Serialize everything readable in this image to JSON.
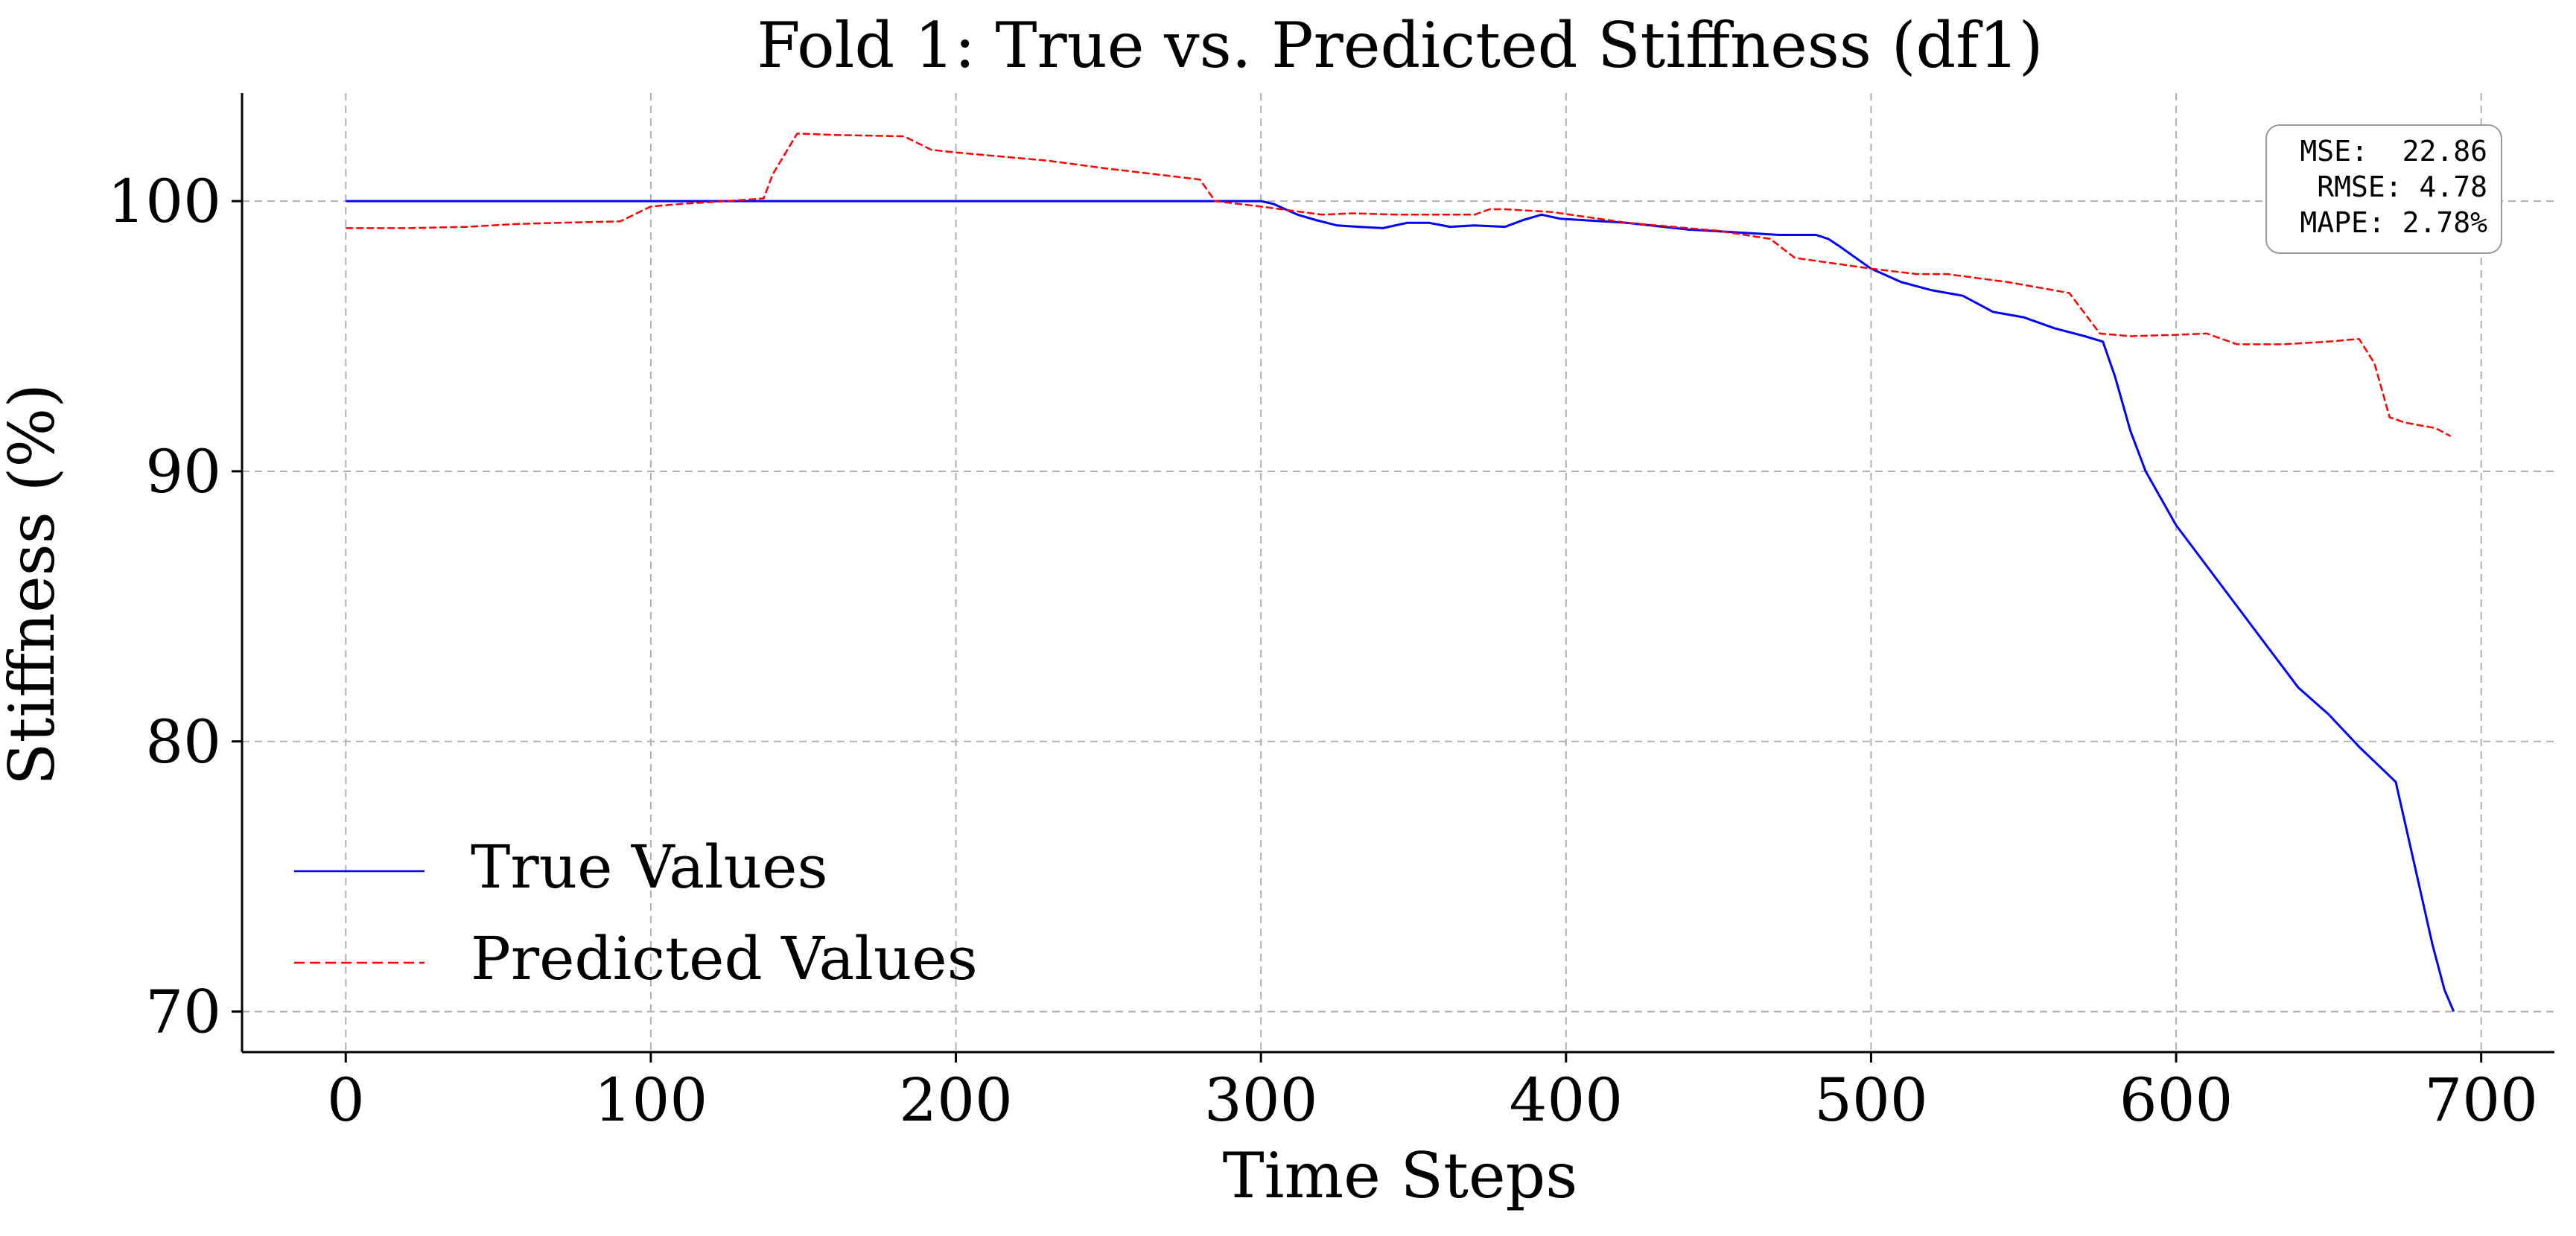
{
  "chart_data": {
    "type": "line",
    "title": "Fold 1: True vs. Predicted Stiffness (df1)",
    "xlabel": "Time Steps",
    "ylabel": "Stiffness (%)",
    "xlim": [
      -34,
      724
    ],
    "ylim": [
      68.5,
      104
    ],
    "xticks": [
      0,
      100,
      200,
      300,
      400,
      500,
      600,
      700
    ],
    "yticks": [
      70,
      80,
      90,
      100
    ],
    "grid": true,
    "legend_position": "lower-left",
    "metrics_box": {
      "mse": "MSE:  22.86",
      "rmse": " RMSE: 4.78",
      "mape": "MAPE: 2.78%"
    },
    "series": [
      {
        "name": "True Values",
        "color": "#0000ff",
        "linestyle": "solid",
        "x": [
          0,
          100,
          200,
          300,
          304,
          312,
          318,
          325,
          332,
          340,
          348,
          355,
          362,
          370,
          380,
          386,
          392,
          398,
          405,
          420,
          440,
          455,
          470,
          478,
          482,
          486,
          490,
          495,
          500,
          510,
          520,
          530,
          540,
          550,
          560,
          570,
          576,
          580,
          585,
          590,
          600,
          610,
          620,
          630,
          640,
          650,
          660,
          672,
          676,
          680,
          684,
          688,
          691
        ],
        "y": [
          100,
          100,
          100,
          100,
          99.9,
          99.5,
          99.3,
          99.1,
          99.05,
          99.0,
          99.2,
          99.2,
          99.05,
          99.1,
          99.05,
          99.3,
          99.5,
          99.35,
          99.3,
          99.2,
          98.95,
          98.85,
          98.75,
          98.75,
          98.75,
          98.6,
          98.3,
          97.9,
          97.5,
          97.0,
          96.7,
          96.5,
          95.9,
          95.7,
          95.3,
          95.0,
          94.8,
          93.5,
          91.5,
          90.0,
          88.0,
          86.5,
          85.0,
          83.5,
          82.0,
          81.0,
          79.8,
          78.5,
          76.5,
          74.5,
          72.5,
          70.8,
          70.0
        ]
      },
      {
        "name": "Predicted Values",
        "color": "#ff0000",
        "linestyle": "dashed",
        "x": [
          0,
          20,
          40,
          55,
          70,
          90,
          100,
          110,
          125,
          137,
          140,
          148,
          160,
          183,
          192,
          200,
          230,
          250,
          280,
          285,
          300,
          320,
          330,
          345,
          360,
          370,
          375,
          380,
          395,
          420,
          450,
          467,
          475,
          500,
          515,
          525,
          545,
          555,
          565,
          575,
          585,
          600,
          610,
          620,
          635,
          650,
          660,
          665,
          670,
          675,
          680,
          685,
          690
        ],
        "y": [
          99.0,
          99.0,
          99.05,
          99.15,
          99.2,
          99.25,
          99.8,
          99.9,
          100.0,
          100.1,
          101.0,
          102.5,
          102.45,
          102.4,
          101.9,
          101.8,
          101.5,
          101.2,
          100.8,
          100.0,
          99.8,
          99.5,
          99.55,
          99.5,
          99.5,
          99.5,
          99.7,
          99.7,
          99.6,
          99.2,
          98.9,
          98.6,
          97.9,
          97.5,
          97.3,
          97.3,
          97.0,
          96.8,
          96.6,
          95.1,
          95.0,
          95.05,
          95.1,
          94.7,
          94.7,
          94.8,
          94.9,
          94.0,
          92.0,
          91.8,
          91.7,
          91.6,
          91.3
        ]
      }
    ]
  }
}
